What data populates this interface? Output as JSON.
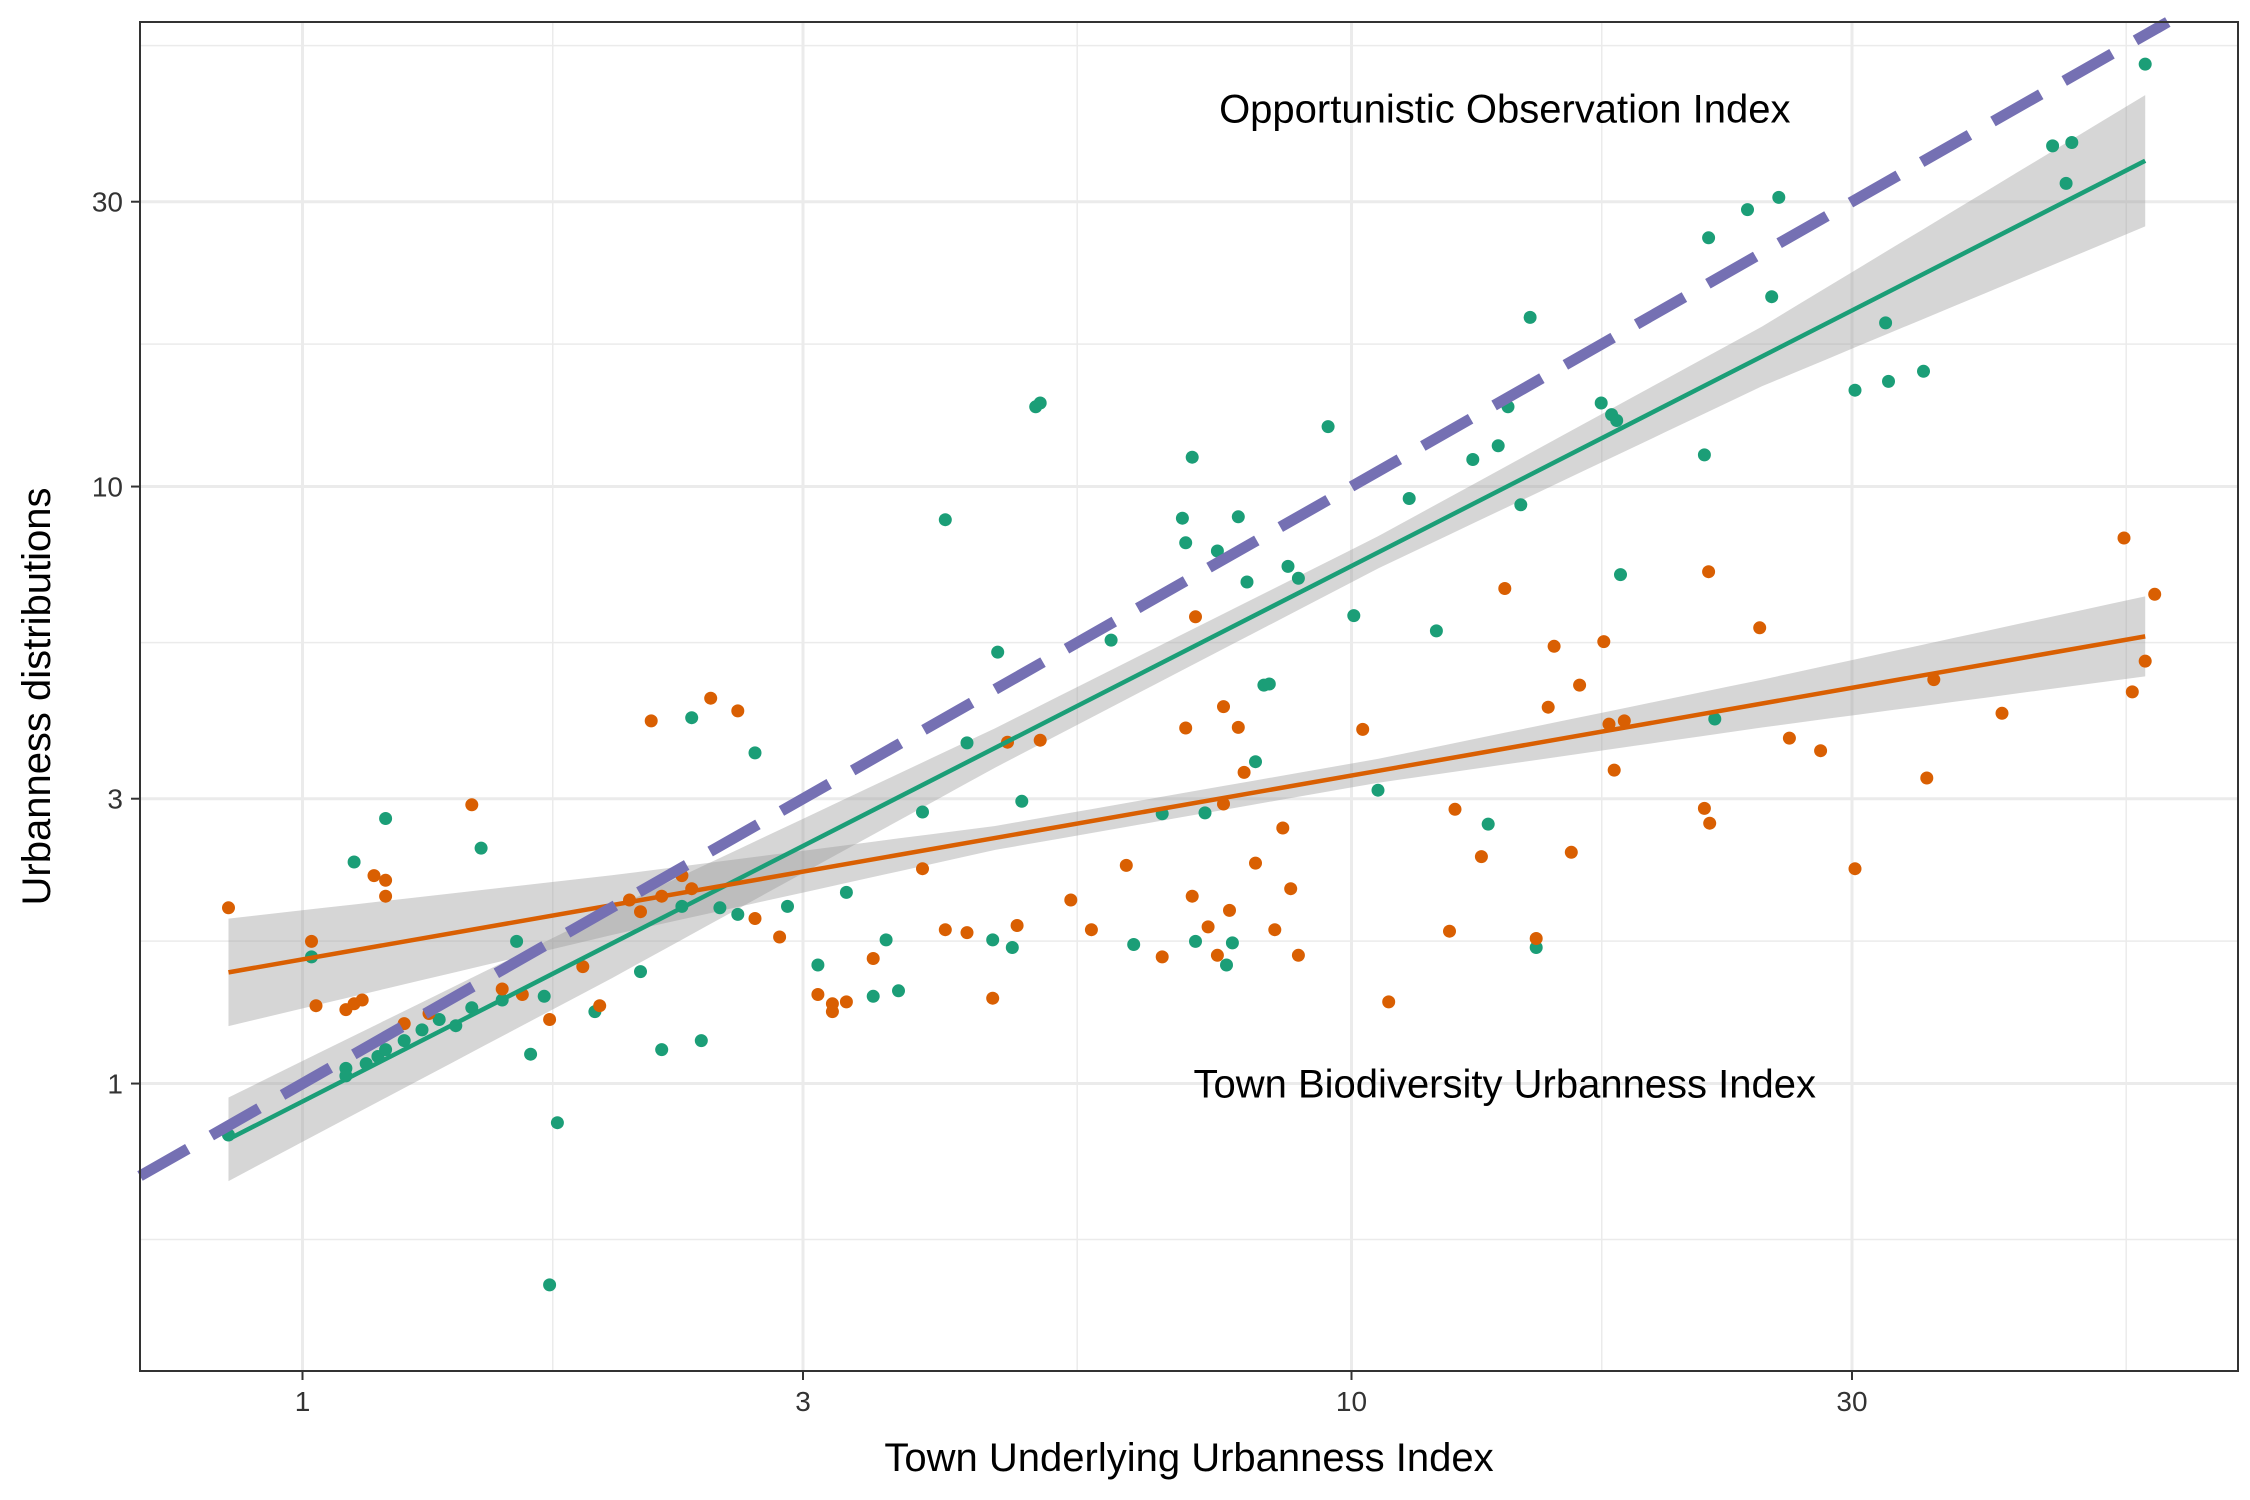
{
  "chart_data": {
    "type": "scatter",
    "title": "",
    "xlabel": "Town Underlying Urbanness Index",
    "ylabel": "Urbanness distributions",
    "x_scale": "log10",
    "y_scale": "log10",
    "xlim": [
      0.7,
      70
    ],
    "ylim": [
      0.33,
      60
    ],
    "x_ticks": [
      1,
      3,
      10,
      30
    ],
    "y_ticks": [
      1,
      3,
      10,
      30
    ],
    "x_minor_gridlines": [
      0.548,
      1.732,
      5.477,
      17.32,
      54.77
    ],
    "y_minor_gridlines": [
      0.548,
      1.732,
      5.477,
      17.32,
      54.77
    ],
    "grid": true,
    "legend": "none",
    "annotations": [
      {
        "text": "Opportunistic Observation Index",
        "x": 14,
        "y": 43
      },
      {
        "text": "Town Biodiversity Urbanness Index",
        "x": 14,
        "y": 1
      }
    ],
    "colors": {
      "opportunistic": "#1b9e77",
      "town_biodiversity": "#d95f02",
      "identity_line": "#7570b3",
      "confidence_band": "#999999",
      "panel_border": "#333333",
      "grid": "#ebebeb"
    },
    "reference_line": {
      "type": "identity",
      "style": "dashed",
      "slope": 1,
      "intercept": 0
    },
    "series": [
      {
        "key": "opportunistic",
        "color": "#1b9e77",
        "points": [
          [
            0.85,
            0.82
          ],
          [
            1.02,
            1.63
          ],
          [
            1.1,
            1.06
          ],
          [
            1.1,
            1.03
          ],
          [
            1.12,
            2.35
          ],
          [
            1.15,
            1.08
          ],
          [
            1.18,
            1.11
          ],
          [
            1.2,
            1.14
          ],
          [
            1.2,
            2.78
          ],
          [
            1.25,
            1.18
          ],
          [
            1.3,
            1.23
          ],
          [
            1.35,
            1.28
          ],
          [
            1.4,
            1.25
          ],
          [
            1.45,
            1.34
          ],
          [
            1.48,
            2.48
          ],
          [
            1.55,
            1.38
          ],
          [
            1.6,
            1.73
          ],
          [
            1.65,
            1.12
          ],
          [
            1.7,
            1.4
          ],
          [
            1.72,
            0.46
          ],
          [
            1.75,
            0.86
          ],
          [
            1.9,
            1.32
          ],
          [
            2.1,
            1.54
          ],
          [
            2.2,
            1.14
          ],
          [
            2.3,
            1.98
          ],
          [
            2.35,
            4.1
          ],
          [
            2.4,
            1.18
          ],
          [
            2.5,
            1.97
          ],
          [
            2.6,
            1.92
          ],
          [
            2.7,
            3.58
          ],
          [
            2.9,
            1.98
          ],
          [
            3.1,
            1.58
          ],
          [
            3.3,
            2.09
          ],
          [
            3.5,
            1.4
          ],
          [
            3.6,
            1.74
          ],
          [
            3.7,
            1.43
          ],
          [
            3.9,
            2.85
          ],
          [
            4.1,
            8.8
          ],
          [
            4.3,
            3.72
          ],
          [
            4.55,
            1.74
          ],
          [
            4.6,
            5.28
          ],
          [
            4.75,
            1.69
          ],
          [
            4.85,
            2.97
          ],
          [
            5,
            13.6
          ],
          [
            5.05,
            13.8
          ],
          [
            5.9,
            5.53
          ],
          [
            6.2,
            1.71
          ],
          [
            6.6,
            2.83
          ],
          [
            6.9,
            8.85
          ],
          [
            6.95,
            8.05
          ],
          [
            7.05,
            11.2
          ],
          [
            7.1,
            1.73
          ],
          [
            7.25,
            2.84
          ],
          [
            7.45,
            7.8
          ],
          [
            7.6,
            1.58
          ],
          [
            7.7,
            1.72
          ],
          [
            7.8,
            8.9
          ],
          [
            7.95,
            6.92
          ],
          [
            8.1,
            3.46
          ],
          [
            8.25,
            4.65
          ],
          [
            8.35,
            4.67
          ],
          [
            8.7,
            7.35
          ],
          [
            8.9,
            7.02
          ],
          [
            9.5,
            12.6
          ],
          [
            10.05,
            6.08
          ],
          [
            10.6,
            3.1
          ],
          [
            11.35,
            9.55
          ],
          [
            12.05,
            5.73
          ],
          [
            13.05,
            11.1
          ],
          [
            13.5,
            2.72
          ],
          [
            13.8,
            11.7
          ],
          [
            14.1,
            13.6
          ],
          [
            14.5,
            9.32
          ],
          [
            14.8,
            19.2
          ],
          [
            15,
            1.69
          ],
          [
            17.3,
            13.8
          ],
          [
            17.7,
            13.2
          ],
          [
            17.9,
            12.9
          ],
          [
            18.05,
            7.12
          ],
          [
            21.7,
            11.3
          ],
          [
            21.9,
            26.1
          ],
          [
            22.2,
            4.08
          ],
          [
            23.85,
            29.1
          ],
          [
            25.15,
            20.8
          ],
          [
            25.55,
            30.5
          ],
          [
            30.2,
            14.5
          ],
          [
            32.3,
            18.8
          ],
          [
            32.5,
            15
          ],
          [
            35.1,
            15.6
          ],
          [
            46.6,
            37.2
          ],
          [
            48,
            32.2
          ],
          [
            48.6,
            37.7
          ],
          [
            57.1,
            51
          ]
        ],
        "fit": {
          "x_range": [
            0.85,
            57.1
          ],
          "slope": 0.897,
          "intercept_log10": -0.03,
          "band_halfwidth_log10": [
            0.07,
            0.058,
            0.033,
            0.027,
            0.05,
            0.11
          ]
        }
      },
      {
        "key": "town_biodiversity",
        "color": "#d95f02",
        "points": [
          [
            0.85,
            1.97
          ],
          [
            1.02,
            1.73
          ],
          [
            1.03,
            1.35
          ],
          [
            1.1,
            1.33
          ],
          [
            1.12,
            1.36
          ],
          [
            1.14,
            1.38
          ],
          [
            1.17,
            2.23
          ],
          [
            1.2,
            2.19
          ],
          [
            1.2,
            2.06
          ],
          [
            1.25,
            1.26
          ],
          [
            1.32,
            1.31
          ],
          [
            1.45,
            2.93
          ],
          [
            1.55,
            1.44
          ],
          [
            1.62,
            1.41
          ],
          [
            1.72,
            1.28
          ],
          [
            1.85,
            1.57
          ],
          [
            1.92,
            1.35
          ],
          [
            2.05,
            2.03
          ],
          [
            2.1,
            1.94
          ],
          [
            2.15,
            4.05
          ],
          [
            2.2,
            2.06
          ],
          [
            2.3,
            2.23
          ],
          [
            2.35,
            2.12
          ],
          [
            2.45,
            4.42
          ],
          [
            2.6,
            4.21
          ],
          [
            2.7,
            1.89
          ],
          [
            2.85,
            1.76
          ],
          [
            3.1,
            1.41
          ],
          [
            3.2,
            1.36
          ],
          [
            3.2,
            1.32
          ],
          [
            3.3,
            1.37
          ],
          [
            3.5,
            1.62
          ],
          [
            3.9,
            2.29
          ],
          [
            4.1,
            1.81
          ],
          [
            4.3,
            1.79
          ],
          [
            4.55,
            1.39
          ],
          [
            4.7,
            3.73
          ],
          [
            4.8,
            1.84
          ],
          [
            5.05,
            3.76
          ],
          [
            5.4,
            2.03
          ],
          [
            5.65,
            1.81
          ],
          [
            6.1,
            2.32
          ],
          [
            6.6,
            1.63
          ],
          [
            6.95,
            3.94
          ],
          [
            7.05,
            2.06
          ],
          [
            7.1,
            6.05
          ],
          [
            7.3,
            1.83
          ],
          [
            7.45,
            1.64
          ],
          [
            7.55,
            4.28
          ],
          [
            7.55,
            2.94
          ],
          [
            7.65,
            1.95
          ],
          [
            7.8,
            3.95
          ],
          [
            7.9,
            3.32
          ],
          [
            8.1,
            2.34
          ],
          [
            8.45,
            1.81
          ],
          [
            8.6,
            2.68
          ],
          [
            8.75,
            2.12
          ],
          [
            8.9,
            1.64
          ],
          [
            10.25,
            3.92
          ],
          [
            10.85,
            1.37
          ],
          [
            12.4,
            1.8
          ],
          [
            12.55,
            2.88
          ],
          [
            13.3,
            2.4
          ],
          [
            14,
            6.75
          ],
          [
            15,
            1.75
          ],
          [
            15.4,
            4.27
          ],
          [
            15.6,
            5.4
          ],
          [
            16.2,
            2.44
          ],
          [
            16.5,
            4.65
          ],
          [
            17.4,
            5.5
          ],
          [
            17.6,
            4
          ],
          [
            17.8,
            3.35
          ],
          [
            18.2,
            4.05
          ],
          [
            21.7,
            2.89
          ],
          [
            21.95,
            2.73
          ],
          [
            21.9,
            7.2
          ],
          [
            24.5,
            5.8
          ],
          [
            26.15,
            3.79
          ],
          [
            28,
            3.61
          ],
          [
            30.2,
            2.29
          ],
          [
            35.35,
            3.25
          ],
          [
            35.9,
            4.75
          ],
          [
            41.7,
            4.17
          ],
          [
            54.5,
            8.2
          ],
          [
            55.5,
            4.53
          ],
          [
            57.1,
            5.1
          ],
          [
            58.3,
            6.6
          ]
        ],
        "fit": {
          "x_range": [
            0.85,
            57.1
          ],
          "slope": 0.308,
          "intercept_log10": 0.208,
          "band_halfwidth_log10": [
            0.09,
            0.05,
            0.02,
            0.02,
            0.04,
            0.067
          ]
        }
      }
    ]
  }
}
